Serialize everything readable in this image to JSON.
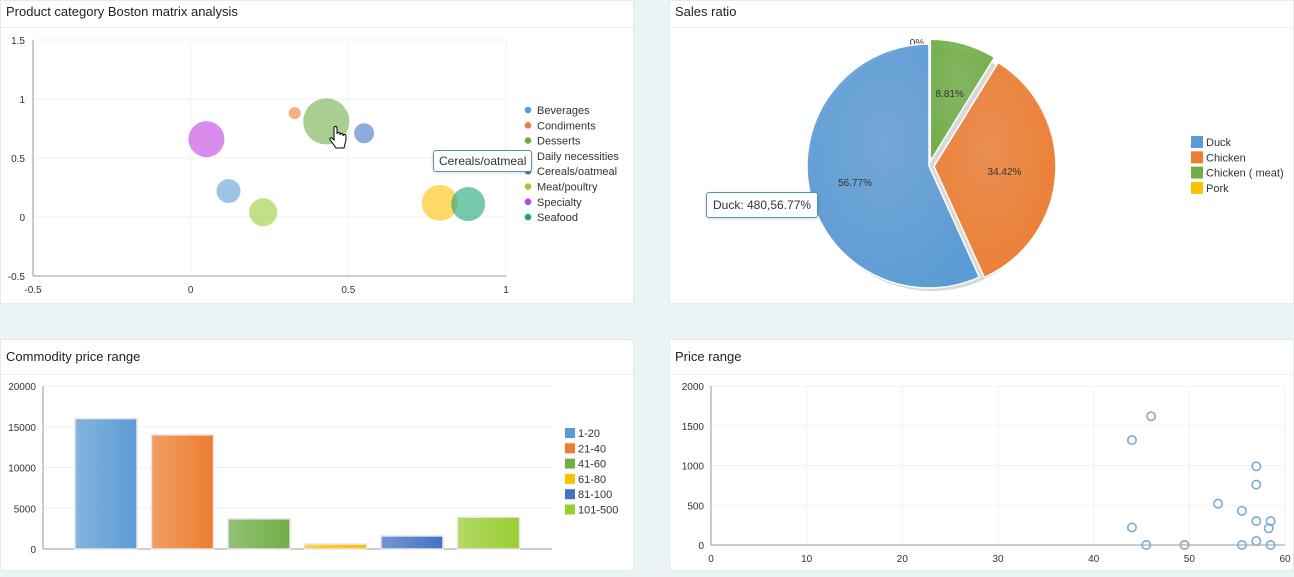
{
  "panels": {
    "boston": {
      "title": "Product category Boston matrix analysis",
      "tooltip": "Cereals/oatmeal"
    },
    "sales": {
      "title": "Sales ratio",
      "tooltip": "Duck: 480,56.77%"
    },
    "price_range": {
      "title": "Commodity price range"
    },
    "price_scatter": {
      "title": "Price range"
    }
  },
  "chart_data": [
    {
      "type": "scatter",
      "title": "Product category Boston matrix analysis",
      "xlim": [
        -0.5,
        1
      ],
      "ylim": [
        -0.5,
        1.5
      ],
      "xticks": [
        "-0.5",
        "0",
        "0.5",
        "1"
      ],
      "yticks": [
        "1.5",
        "1",
        "0.5",
        "0",
        "-0.5"
      ],
      "legend": "right",
      "series": [
        {
          "name": "Beverages",
          "color": "#5b9bd5",
          "points": [
            {
              "x": 0.12,
              "y": 0.22,
              "size": 12
            }
          ]
        },
        {
          "name": "Condiments",
          "color": "#ed7d31",
          "points": [
            {
              "x": 0.33,
              "y": 0.88,
              "size": 6
            }
          ]
        },
        {
          "name": "Desserts",
          "color": "#70ad47",
          "points": [
            {
              "x": 0.43,
              "y": 0.81,
              "size": 23
            }
          ]
        },
        {
          "name": "Daily necessities",
          "color": "#ffc000",
          "points": [
            {
              "x": 0.79,
              "y": 0.12,
              "size": 18
            }
          ]
        },
        {
          "name": "Cereals/oatmeal",
          "color": "#4472c4",
          "points": [
            {
              "x": 0.55,
              "y": 0.71,
              "size": 10
            }
          ]
        },
        {
          "name": "Meat/poultry",
          "color": "#9acd32",
          "points": [
            {
              "x": 0.23,
              "y": 0.04,
              "size": 14
            }
          ]
        },
        {
          "name": "Specialty",
          "color": "#bf40e0",
          "points": [
            {
              "x": 0.05,
              "y": 0.66,
              "size": 18
            }
          ]
        },
        {
          "name": "Seafood",
          "color": "#1aa37a",
          "points": [
            {
              "x": 0.88,
              "y": 0.11,
              "size": 17
            }
          ]
        }
      ]
    },
    {
      "type": "pie",
      "title": "Sales ratio",
      "legend": "right",
      "slices": [
        {
          "name": "Duck",
          "value": 56.77,
          "label": "56.77%",
          "color": "#5b9bd5"
        },
        {
          "name": "Chicken",
          "value": 34.42,
          "label": "34.42%",
          "color": "#ed7d31"
        },
        {
          "name": "Chicken ( meat)",
          "value": 8.81,
          "label": "8.81%",
          "color": "#70ad47"
        },
        {
          "name": "Pork",
          "value": 0,
          "label": "0%",
          "color": "#ffc000"
        }
      ]
    },
    {
      "type": "bar",
      "title": "Commodity price range",
      "ylim": [
        0,
        20000
      ],
      "yticks": [
        "20000",
        "15000",
        "10000",
        "5000",
        "0"
      ],
      "legend": "right",
      "categories": [
        "1-20",
        "21-40",
        "41-60",
        "61-80",
        "81-100",
        "101-500"
      ],
      "values": [
        16000,
        14000,
        3700,
        600,
        1600,
        3900
      ],
      "colors": [
        "#5b9bd5",
        "#ed7d31",
        "#70ad47",
        "#ffc000",
        "#4472c4",
        "#9acd32"
      ]
    },
    {
      "type": "scatter",
      "title": "Price range",
      "xlim": [
        0,
        60
      ],
      "ylim": [
        0,
        2000
      ],
      "xticks": [
        "0",
        "10",
        "20",
        "30",
        "40",
        "50",
        "60"
      ],
      "yticks": [
        "2000",
        "1500",
        "1000",
        "500",
        "0"
      ],
      "color": "#7aaad6",
      "points": [
        {
          "x": 46,
          "y": 1620
        },
        {
          "x": 44,
          "y": 1320
        },
        {
          "x": 57,
          "y": 990
        },
        {
          "x": 57,
          "y": 760
        },
        {
          "x": 53,
          "y": 520
        },
        {
          "x": 55.5,
          "y": 430
        },
        {
          "x": 57,
          "y": 300
        },
        {
          "x": 58.5,
          "y": 300
        },
        {
          "x": 58.3,
          "y": 210
        },
        {
          "x": 44,
          "y": 220
        },
        {
          "x": 57,
          "y": 50
        },
        {
          "x": 45.5,
          "y": 0
        },
        {
          "x": 49.5,
          "y": 0
        },
        {
          "x": 55.5,
          "y": 0
        },
        {
          "x": 58.5,
          "y": 0
        }
      ]
    }
  ]
}
